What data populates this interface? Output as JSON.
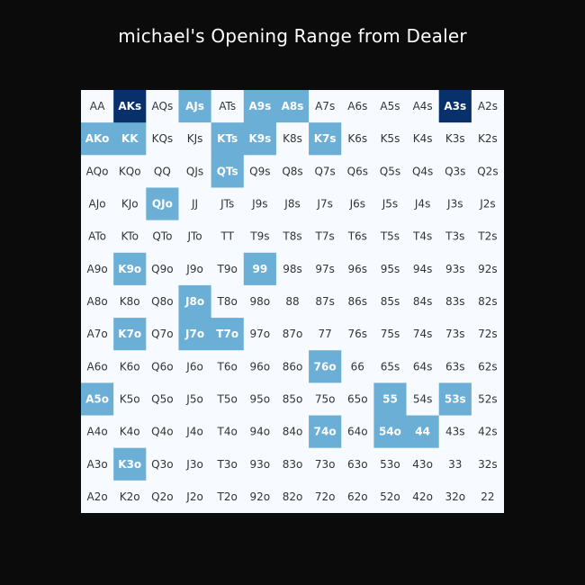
{
  "chart_data": {
    "type": "heatmap",
    "title": "michael's Opening Range from Dealer",
    "colors": {
      "default": "#f7fbff",
      "mid": "#6baed6",
      "dark": "#08306b",
      "text_dark": "#333333",
      "text_light": "#ffffff",
      "background": "#0b0b0b"
    },
    "rows": [
      [
        "AA",
        "AKs",
        "AQs",
        "AJs",
        "ATs",
        "A9s",
        "A8s",
        "A7s",
        "A6s",
        "A5s",
        "A4s",
        "A3s",
        "A2s"
      ],
      [
        "AKo",
        "KK",
        "KQs",
        "KJs",
        "KTs",
        "K9s",
        "K8s",
        "K7s",
        "K6s",
        "K5s",
        "K4s",
        "K3s",
        "K2s"
      ],
      [
        "AQo",
        "KQo",
        "QQ",
        "QJs",
        "QTs",
        "Q9s",
        "Q8s",
        "Q7s",
        "Q6s",
        "Q5s",
        "Q4s",
        "Q3s",
        "Q2s"
      ],
      [
        "AJo",
        "KJo",
        "QJo",
        "JJ",
        "JTs",
        "J9s",
        "J8s",
        "J7s",
        "J6s",
        "J5s",
        "J4s",
        "J3s",
        "J2s"
      ],
      [
        "ATo",
        "KTo",
        "QTo",
        "JTo",
        "TT",
        "T9s",
        "T8s",
        "T7s",
        "T6s",
        "T5s",
        "T4s",
        "T3s",
        "T2s"
      ],
      [
        "A9o",
        "K9o",
        "Q9o",
        "J9o",
        "T9o",
        "99",
        "98s",
        "97s",
        "96s",
        "95s",
        "94s",
        "93s",
        "92s"
      ],
      [
        "A8o",
        "K8o",
        "Q8o",
        "J8o",
        "T8o",
        "98o",
        "88",
        "87s",
        "86s",
        "85s",
        "84s",
        "83s",
        "82s"
      ],
      [
        "A7o",
        "K7o",
        "Q7o",
        "J7o",
        "T7o",
        "97o",
        "87o",
        "77",
        "76s",
        "75s",
        "74s",
        "73s",
        "72s"
      ],
      [
        "A6o",
        "K6o",
        "Q6o",
        "J6o",
        "T6o",
        "96o",
        "86o",
        "76o",
        "66",
        "65s",
        "64s",
        "63s",
        "62s"
      ],
      [
        "A5o",
        "K5o",
        "Q5o",
        "J5o",
        "T5o",
        "95o",
        "85o",
        "75o",
        "65o",
        "55",
        "54s",
        "53s",
        "52s"
      ],
      [
        "A4o",
        "K4o",
        "Q4o",
        "J4o",
        "T4o",
        "94o",
        "84o",
        "74o",
        "64o",
        "54o",
        "44",
        "43s",
        "42s"
      ],
      [
        "A3o",
        "K3o",
        "Q3o",
        "J3o",
        "T3o",
        "93o",
        "83o",
        "73o",
        "63o",
        "53o",
        "43o",
        "33",
        "32s"
      ],
      [
        "A2o",
        "K2o",
        "Q2o",
        "J2o",
        "T2o",
        "92o",
        "82o",
        "72o",
        "62o",
        "52o",
        "42o",
        "32o",
        "22"
      ]
    ],
    "levels": [
      [
        0,
        2,
        0,
        1,
        0,
        1,
        1,
        0,
        0,
        0,
        0,
        2,
        0
      ],
      [
        1,
        1,
        0,
        0,
        1,
        1,
        0,
        1,
        0,
        0,
        0,
        0,
        0
      ],
      [
        0,
        0,
        0,
        0,
        1,
        0,
        0,
        0,
        0,
        0,
        0,
        0,
        0
      ],
      [
        0,
        0,
        1,
        0,
        0,
        0,
        0,
        0,
        0,
        0,
        0,
        0,
        0
      ],
      [
        0,
        0,
        0,
        0,
        0,
        0,
        0,
        0,
        0,
        0,
        0,
        0,
        0
      ],
      [
        0,
        1,
        0,
        0,
        0,
        1,
        0,
        0,
        0,
        0,
        0,
        0,
        0
      ],
      [
        0,
        0,
        0,
        1,
        0,
        0,
        0,
        0,
        0,
        0,
        0,
        0,
        0
      ],
      [
        0,
        1,
        0,
        1,
        1,
        0,
        0,
        0,
        0,
        0,
        0,
        0,
        0
      ],
      [
        0,
        0,
        0,
        0,
        0,
        0,
        0,
        1,
        0,
        0,
        0,
        0,
        0
      ],
      [
        1,
        0,
        0,
        0,
        0,
        0,
        0,
        0,
        0,
        1,
        0,
        1,
        0
      ],
      [
        0,
        0,
        0,
        0,
        0,
        0,
        0,
        1,
        0,
        1,
        1,
        0,
        0
      ],
      [
        0,
        1,
        0,
        0,
        0,
        0,
        0,
        0,
        0,
        0,
        0,
        0,
        0
      ],
      [
        0,
        0,
        0,
        0,
        0,
        0,
        0,
        0,
        0,
        0,
        0,
        0,
        0
      ]
    ]
  }
}
